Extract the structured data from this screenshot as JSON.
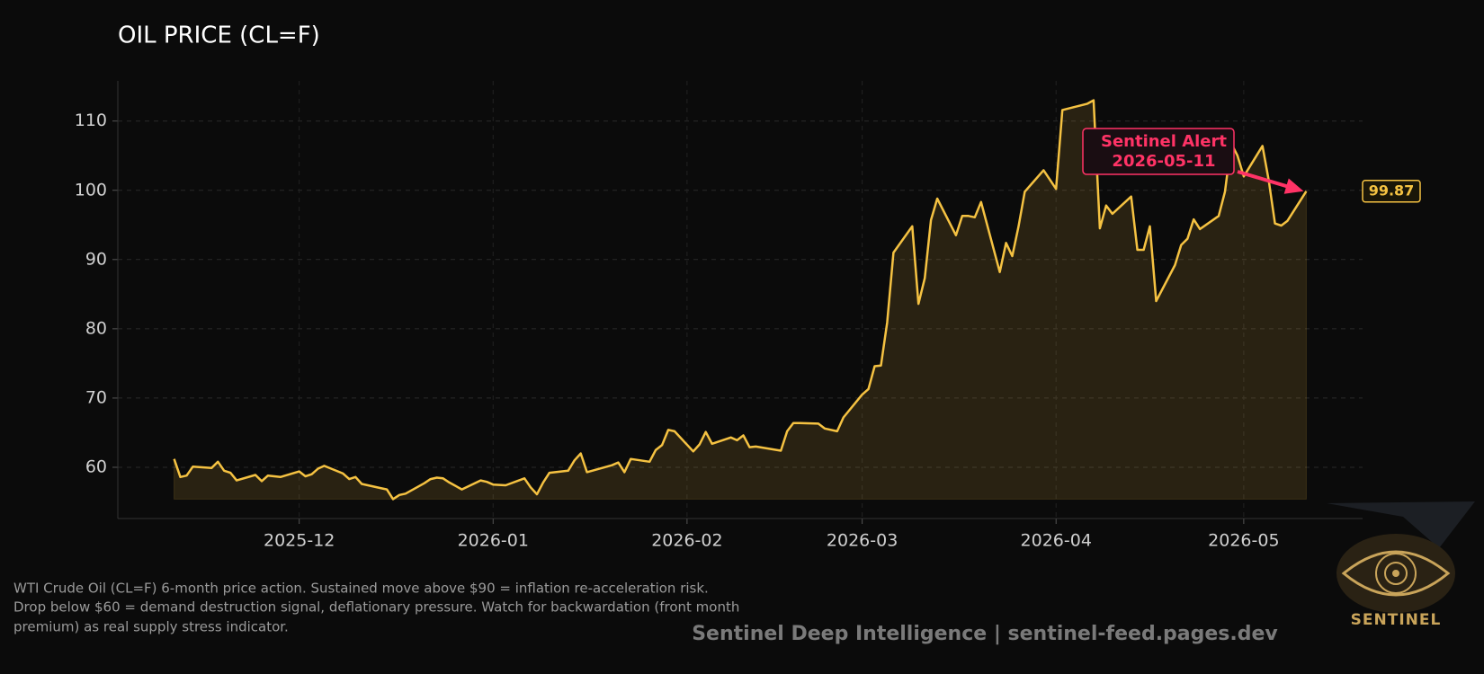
{
  "chart_data": {
    "type": "line",
    "title": "OIL PRICE (CL=F)",
    "x": [
      -20,
      -19,
      -18,
      -17,
      -14,
      -13,
      -12,
      -11,
      -10,
      -7,
      -6,
      -5,
      -4,
      -3,
      0,
      1,
      2,
      3,
      4,
      7,
      8,
      9,
      10,
      13,
      14,
      15,
      16,
      17,
      20,
      21,
      22,
      23,
      24,
      26,
      29,
      30,
      31,
      33,
      36,
      37,
      38,
      39,
      40,
      43,
      44,
      45,
      46,
      50,
      51,
      52,
      53,
      56,
      57,
      58,
      59,
      60,
      63,
      64,
      65,
      66,
      69,
      70,
      71,
      72,
      73,
      77,
      78,
      79,
      80,
      83,
      84,
      86,
      87,
      90,
      91,
      92,
      93,
      94,
      95,
      98,
      99,
      100,
      101,
      102,
      105,
      106,
      107,
      108,
      109,
      112,
      113,
      114,
      115,
      116,
      119,
      121,
      122,
      126,
      127,
      128,
      129,
      130,
      133,
      134,
      135,
      136,
      137,
      140,
      141,
      142,
      143,
      144,
      147,
      148,
      149,
      150,
      151,
      154,
      155,
      156,
      157,
      158,
      161
    ],
    "series": [
      {
        "name": "CL=F",
        "color": "#f5c242",
        "values": [
          61.2,
          58.6,
          58.8,
          60.1,
          59.9,
          60.8,
          59.5,
          59.2,
          58.1,
          58.9,
          58.0,
          58.8,
          58.7,
          58.6,
          59.4,
          58.7,
          59.0,
          59.8,
          60.2,
          59.1,
          58.3,
          58.6,
          57.6,
          57.0,
          56.8,
          55.4,
          56.0,
          56.2,
          57.7,
          58.3,
          58.5,
          58.4,
          57.8,
          56.8,
          58.1,
          57.9,
          57.5,
          57.4,
          58.4,
          57.1,
          56.1,
          57.8,
          59.2,
          59.5,
          61.0,
          62.0,
          59.3,
          60.3,
          60.7,
          59.3,
          61.2,
          60.8,
          62.5,
          63.2,
          65.4,
          65.2,
          62.3,
          63.3,
          65.1,
          63.4,
          64.3,
          63.9,
          64.6,
          62.9,
          63.0,
          62.4,
          65.2,
          66.4,
          66.4,
          66.3,
          65.6,
          65.2,
          67.2,
          70.5,
          71.3,
          74.6,
          74.7,
          80.9,
          91.0,
          94.8,
          83.6,
          87.3,
          95.7,
          98.8,
          93.5,
          96.3,
          96.3,
          96.1,
          98.3,
          88.2,
          92.4,
          90.5,
          94.8,
          99.8,
          102.9,
          100.2,
          111.6,
          112.5,
          113.0,
          94.5,
          97.8,
          96.6,
          99.1,
          91.4,
          91.4,
          94.8,
          84.0,
          89.2,
          92.1,
          93.0,
          95.8,
          94.4,
          96.3,
          99.8,
          106.8,
          105.0,
          102.0,
          106.4,
          101.4,
          95.2,
          94.9,
          95.6,
          99.87
        ]
      }
    ],
    "xlim": [
      -29,
      170
    ],
    "xticks": [
      {
        "value": 0,
        "label": "2025-12"
      },
      {
        "value": 31,
        "label": "2026-01"
      },
      {
        "value": 62,
        "label": "2026-02"
      },
      {
        "value": 90,
        "label": "2026-03"
      },
      {
        "value": 121,
        "label": "2026-04"
      },
      {
        "value": 151,
        "label": "2026-05"
      }
    ],
    "ylim": [
      52.6,
      115.8
    ],
    "yticks": [
      60,
      70,
      80,
      90,
      100,
      110
    ],
    "grid": true,
    "annotation": {
      "title": "Sentinel Alert",
      "date": "2026-05-11",
      "color": "#ff3366"
    }
  },
  "footer": {
    "note": [
      "WTI Crude Oil (CL=F) 6-month price action. Sustained move above $90 = inflation re-acceleration risk.",
      "Drop below $60 = demand destruction signal, deflationary pressure. Watch for backwardation (front month",
      "premium) as real supply stress indicator."
    ],
    "watermark": "Sentinel Deep Intelligence  |  sentinel-feed.pages.dev",
    "logo": "SENTINEL"
  }
}
